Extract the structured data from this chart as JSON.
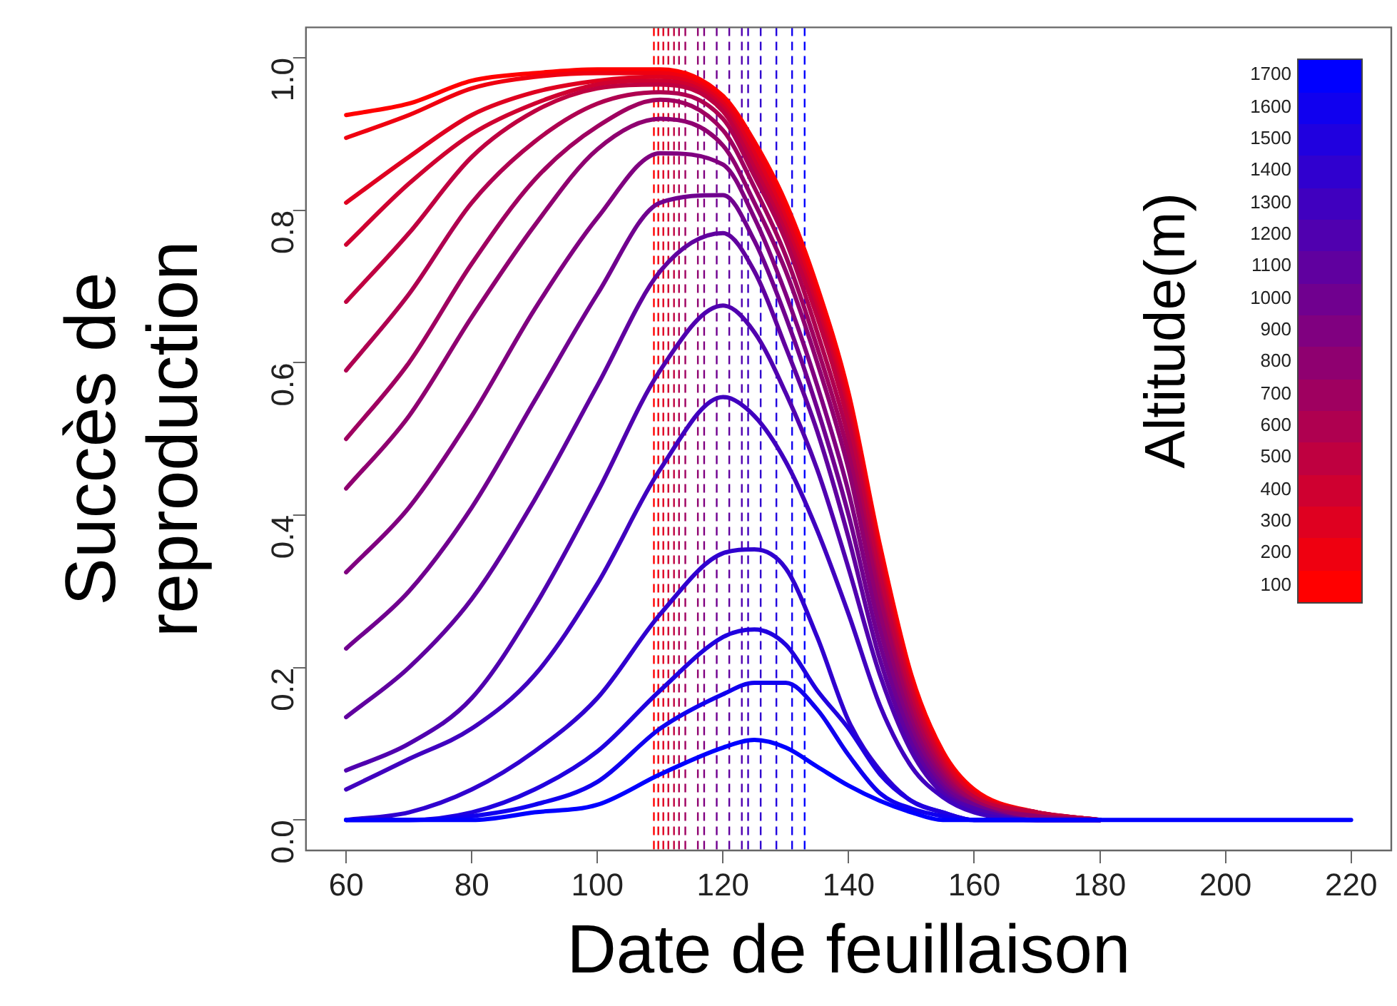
{
  "chart_data": {
    "type": "line",
    "xlabel": "Date de feuillaison",
    "ylabel": "Succès de\nreproduction",
    "legend_title": "Altitude(m)",
    "legend": "top right",
    "grid": false,
    "xlim": [
      53.6,
      226.4
    ],
    "xticks": [
      60,
      80,
      100,
      120,
      140,
      160,
      180,
      200,
      220
    ],
    "ylim": [
      -0.04,
      1.04
    ],
    "yticks": [
      {
        "value": 0,
        "label": "0.0"
      },
      {
        "value": 0.2,
        "label": "0.2"
      },
      {
        "value": 0.4,
        "label": "0.4"
      },
      {
        "value": 0.6,
        "label": "0.6"
      },
      {
        "value": 0.8,
        "label": "0.8"
      },
      {
        "value": 1,
        "label": "1.0"
      }
    ],
    "x": [
      60,
      70,
      80,
      90,
      100,
      110,
      120,
      125,
      130,
      135,
      140,
      145,
      150,
      155,
      160,
      170,
      180
    ],
    "series": [
      {
        "name": "100",
        "color": "#ff0000",
        "values": [
          0.925,
          0.94,
          0.97,
          0.98,
          0.985,
          0.985,
          0.95,
          0.89,
          0.81,
          0.7,
          0.56,
          0.36,
          0.19,
          0.09,
          0.04,
          0.01,
          0
        ]
      },
      {
        "name": "200",
        "color": "#ef0010",
        "values": [
          0.895,
          0.925,
          0.96,
          0.975,
          0.98,
          0.98,
          0.945,
          0.885,
          0.8,
          0.69,
          0.55,
          0.35,
          0.18,
          0.085,
          0.035,
          0.01,
          0
        ]
      },
      {
        "name": "300",
        "color": "#df0020",
        "values": [
          0.81,
          0.87,
          0.925,
          0.955,
          0.97,
          0.975,
          0.94,
          0.875,
          0.79,
          0.68,
          0.54,
          0.34,
          0.175,
          0.08,
          0.035,
          0.01,
          0
        ]
      },
      {
        "name": "400",
        "color": "#cf0030",
        "values": [
          0.755,
          0.835,
          0.9,
          0.94,
          0.965,
          0.97,
          0.935,
          0.865,
          0.78,
          0.67,
          0.53,
          0.33,
          0.17,
          0.075,
          0.03,
          0.01,
          0
        ]
      },
      {
        "name": "500",
        "color": "#bf0040",
        "values": [
          0.68,
          0.77,
          0.87,
          0.93,
          0.96,
          0.965,
          0.93,
          0.855,
          0.77,
          0.66,
          0.52,
          0.32,
          0.16,
          0.07,
          0.03,
          0.01,
          0
        ]
      },
      {
        "name": "600",
        "color": "#af0050",
        "values": [
          0.59,
          0.69,
          0.81,
          0.89,
          0.94,
          0.955,
          0.92,
          0.845,
          0.76,
          0.64,
          0.5,
          0.3,
          0.15,
          0.065,
          0.025,
          0.005,
          0
        ]
      },
      {
        "name": "700",
        "color": "#9f0060",
        "values": [
          0.5,
          0.6,
          0.73,
          0.84,
          0.91,
          0.945,
          0.905,
          0.83,
          0.74,
          0.62,
          0.48,
          0.29,
          0.14,
          0.06,
          0.025,
          0.005,
          0
        ]
      },
      {
        "name": "800",
        "color": "#8f0070",
        "values": [
          0.435,
          0.53,
          0.66,
          0.78,
          0.88,
          0.92,
          0.885,
          0.81,
          0.72,
          0.6,
          0.46,
          0.27,
          0.13,
          0.055,
          0.02,
          0.005,
          0
        ]
      },
      {
        "name": "900",
        "color": "#800080",
        "values": [
          0.325,
          0.41,
          0.53,
          0.67,
          0.79,
          0.875,
          0.86,
          0.79,
          0.69,
          0.57,
          0.43,
          0.25,
          0.12,
          0.05,
          0.02,
          0,
          0
        ]
      },
      {
        "name": "1000",
        "color": "#70008f",
        "values": [
          0.225,
          0.3,
          0.41,
          0.55,
          0.69,
          0.81,
          0.82,
          0.76,
          0.66,
          0.54,
          0.4,
          0.23,
          0.11,
          0.045,
          0.02,
          0,
          0
        ]
      },
      {
        "name": "1100",
        "color": "#60009f",
        "values": [
          0.135,
          0.2,
          0.29,
          0.42,
          0.57,
          0.72,
          0.77,
          0.72,
          0.62,
          0.51,
          0.37,
          0.21,
          0.1,
          0.04,
          0.015,
          0,
          0
        ]
      },
      {
        "name": "1200",
        "color": "#5000af",
        "values": [
          0.065,
          0.1,
          0.16,
          0.28,
          0.43,
          0.59,
          0.675,
          0.64,
          0.56,
          0.46,
          0.33,
          0.19,
          0.09,
          0.035,
          0.015,
          0,
          0
        ]
      },
      {
        "name": "1300",
        "color": "#4000bf",
        "values": [
          0.04,
          0.08,
          0.12,
          0.19,
          0.31,
          0.46,
          0.555,
          0.53,
          0.47,
          0.38,
          0.27,
          0.15,
          0.07,
          0.03,
          0.01,
          0,
          0
        ]
      },
      {
        "name": "1400",
        "color": "#3000cf",
        "values": [
          0,
          0.01,
          0.04,
          0.09,
          0.16,
          0.27,
          0.35,
          0.355,
          0.33,
          0.24,
          0.13,
          0.065,
          0.025,
          0.01,
          0,
          0,
          0
        ]
      },
      {
        "name": "1500",
        "color": "#2000df",
        "values": [
          0,
          0,
          0.01,
          0.04,
          0.09,
          0.17,
          0.24,
          0.25,
          0.23,
          0.17,
          0.12,
          0.06,
          0.025,
          0.01,
          0,
          0,
          0
        ]
      },
      {
        "name": "1600",
        "color": "#1000ef",
        "values": [
          0,
          0,
          0.005,
          0.02,
          0.05,
          0.12,
          0.165,
          0.18,
          0.18,
          0.145,
          0.085,
          0.035,
          0.015,
          0.005,
          0,
          0,
          0
        ]
      },
      {
        "name": "1700",
        "color": "#0000ff",
        "x": [
          60,
          70,
          80,
          90,
          100,
          110,
          120,
          125,
          130,
          135,
          140,
          145,
          150,
          155,
          160,
          170,
          180,
          200,
          220
        ],
        "values": [
          0,
          0,
          0,
          0.01,
          0.02,
          0.06,
          0.095,
          0.105,
          0.095,
          0.07,
          0.045,
          0.025,
          0.01,
          0,
          0,
          0,
          0,
          0,
          0
        ]
      }
    ],
    "ref_lines": [
      {
        "axis": "x",
        "value": 109,
        "color": "#ff0000",
        "line_style": "dashed"
      },
      {
        "axis": "x",
        "value": 109.7,
        "color": "#ef0010",
        "line_style": "dashed"
      },
      {
        "axis": "x",
        "value": 110.5,
        "color": "#df0020",
        "line_style": "dashed"
      },
      {
        "axis": "x",
        "value": 111.3,
        "color": "#cf0030",
        "line_style": "dashed"
      },
      {
        "axis": "x",
        "value": 112.2,
        "color": "#bf0040",
        "line_style": "dashed"
      },
      {
        "axis": "x",
        "value": 113,
        "color": "#af0050",
        "line_style": "dashed"
      },
      {
        "axis": "x",
        "value": 114,
        "color": "#9f0060",
        "line_style": "dashed"
      },
      {
        "axis": "x",
        "value": 116,
        "color": "#8f0070",
        "line_style": "dashed"
      },
      {
        "axis": "x",
        "value": 117,
        "color": "#800080",
        "line_style": "dashed"
      },
      {
        "axis": "x",
        "value": 119,
        "color": "#70008f",
        "line_style": "dashed"
      },
      {
        "axis": "x",
        "value": 121,
        "color": "#60009f",
        "line_style": "dashed"
      },
      {
        "axis": "x",
        "value": 123,
        "color": "#5000af",
        "line_style": "dashed"
      },
      {
        "axis": "x",
        "value": 124,
        "color": "#4000bf",
        "line_style": "dashed"
      },
      {
        "axis": "x",
        "value": 126,
        "color": "#3000cf",
        "line_style": "dashed"
      },
      {
        "axis": "x",
        "value": 128.5,
        "color": "#2000df",
        "line_style": "dashed"
      },
      {
        "axis": "x",
        "value": 131,
        "color": "#1000ef",
        "line_style": "dashed"
      },
      {
        "axis": "x",
        "value": 133,
        "color": "#0000ff",
        "line_style": "dashed"
      }
    ]
  }
}
